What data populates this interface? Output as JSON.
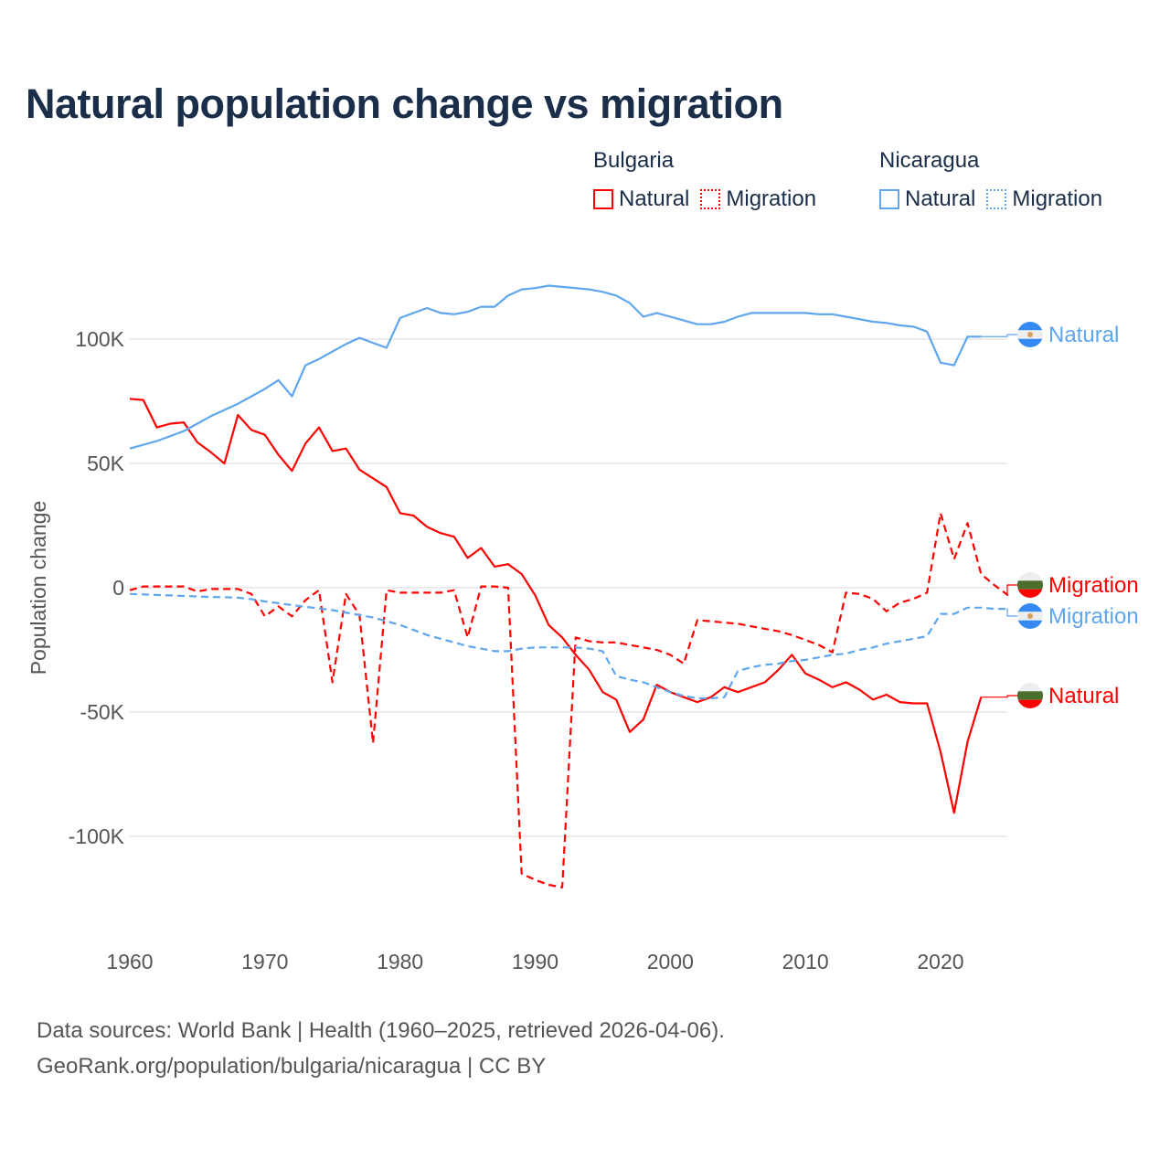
{
  "title": "Natural population change vs migration",
  "legend": [
    {
      "country": "Bulgaria",
      "items": [
        {
          "label": "Natural",
          "color": "#ff0000",
          "style": "solid"
        },
        {
          "label": "Migration",
          "color": "#ff0000",
          "style": "dotted"
        }
      ]
    },
    {
      "country": "Nicaragua",
      "items": [
        {
          "label": "Natural",
          "color": "#5ea6ee",
          "style": "solid"
        },
        {
          "label": "Migration",
          "color": "#5ea6ee",
          "style": "dotted"
        }
      ]
    }
  ],
  "footer": {
    "line1": "Data sources: World Bank | Health (1960–2025, retrieved 2026-04-06).",
    "line2": "GeoRank.org/population/bulgaria/nicaragua | CC BY"
  },
  "chart_data": {
    "type": "line",
    "title": "Natural population change vs migration",
    "xlabel": "",
    "ylabel": "Population change",
    "xlim": [
      1960,
      2025
    ],
    "ylim": [
      -130000,
      130000
    ],
    "x_ticks": [
      1960,
      1970,
      1980,
      1990,
      2000,
      2010,
      2020
    ],
    "y_ticks": [
      {
        "value": 100000,
        "label": "100K"
      },
      {
        "value": 50000,
        "label": "50K"
      },
      {
        "value": 0,
        "label": "0"
      },
      {
        "value": -50000,
        "label": "-50K"
      },
      {
        "value": -100000,
        "label": "-100K"
      }
    ],
    "grid": true,
    "legend_position": "top-right",
    "start_year": 1960,
    "series": [
      {
        "name": "Bulgaria Natural",
        "end_label": "Natural",
        "color": "#ff0000",
        "dashed": false,
        "values_k": [
          76,
          75.5,
          64.5,
          66,
          66.5,
          58.5,
          54.5,
          50,
          69.5,
          63.5,
          61.5,
          53.5,
          47,
          58,
          64.5,
          55,
          56,
          47.5,
          44,
          40.5,
          30,
          29,
          24.5,
          22,
          20.5,
          12,
          16,
          8.5,
          9.5,
          5.5,
          -3,
          -15,
          -20,
          -27,
          -33,
          -42,
          -45,
          -58,
          -53,
          -39,
          -42,
          -44,
          -46,
          -44,
          -40,
          -42,
          -40,
          -38,
          -33,
          -27,
          -34.5,
          -37,
          -40,
          -38,
          -41,
          -45,
          -43,
          -46,
          -46.5,
          -46.5,
          -66,
          -90.5,
          -62,
          -44
        ]
      },
      {
        "name": "Bulgaria Migration",
        "end_label": "Migration",
        "color": "#ff0000",
        "dashed": true,
        "values_k": [
          -1,
          0.5,
          0.5,
          0.5,
          0.5,
          -1.5,
          -0.5,
          -0.5,
          -0.5,
          -2.5,
          -11.5,
          -7.5,
          -11.5,
          -5,
          -1,
          -38,
          -2.5,
          -11,
          -62.5,
          -1,
          -2,
          -2,
          -2,
          -2,
          -1,
          -20,
          0.5,
          0.5,
          0,
          -115,
          -117.5,
          -119.5,
          -120.5,
          -20,
          -21.5,
          -22,
          -22,
          -23,
          -24,
          -25,
          -27,
          -30.5,
          -13,
          -13.5,
          -14,
          -14.5,
          -15.5,
          -16.5,
          -17.5,
          -19,
          -21,
          -23,
          -26,
          -2,
          -2.5,
          -4.5,
          -9.5,
          -6,
          -4.5,
          -2,
          30,
          11.5,
          26,
          5.5,
          1,
          -3
        ]
      },
      {
        "name": "Nicaragua Natural",
        "end_label": "Natural",
        "color": "#5ea6ee",
        "dashed": false,
        "values_k": [
          56,
          57.5,
          59,
          61,
          63,
          66,
          69,
          71.5,
          74,
          77,
          80,
          83.5,
          77,
          89.5,
          92,
          95,
          98,
          100.5,
          98.5,
          96.5,
          108.5,
          110.5,
          112.5,
          110.5,
          110,
          111,
          113,
          113,
          117.5,
          120,
          120.5,
          121.5,
          121,
          120.5,
          120,
          119,
          117.5,
          114.5,
          109,
          110.5,
          109,
          107.5,
          106,
          106,
          107,
          109,
          110.5,
          110.5,
          110.5,
          110.5,
          110.5,
          110,
          110,
          109,
          108,
          107,
          106.5,
          105.5,
          105,
          103,
          90.5,
          89.5,
          101,
          101
        ]
      },
      {
        "name": "Nicaragua Migration",
        "end_label": "Migration",
        "color": "#5ea6ee",
        "dashed": true,
        "values_k": [
          -2.5,
          -2.7,
          -2.9,
          -3.1,
          -3.3,
          -3.5,
          -3.7,
          -3.8,
          -4,
          -4.6,
          -5.5,
          -6.2,
          -7,
          -7.7,
          -8.3,
          -9,
          -10,
          -11,
          -12,
          -13.5,
          -15,
          -17,
          -19,
          -20.5,
          -22,
          -23.5,
          -24.5,
          -25.5,
          -25.5,
          -24.5,
          -24,
          -24,
          -24,
          -24,
          -24.5,
          -25.5,
          -35.5,
          -37,
          -38,
          -40,
          -42,
          -43.5,
          -44.5,
          -44.5,
          -44,
          -33.5,
          -32,
          -31,
          -30.5,
          -29.5,
          -29,
          -28,
          -27,
          -26.5,
          -25,
          -24,
          -22.5,
          -21.5,
          -20.5,
          -19.5,
          -10.5,
          -10.5,
          -8,
          -8,
          -8.5,
          -8.5
        ]
      }
    ]
  }
}
